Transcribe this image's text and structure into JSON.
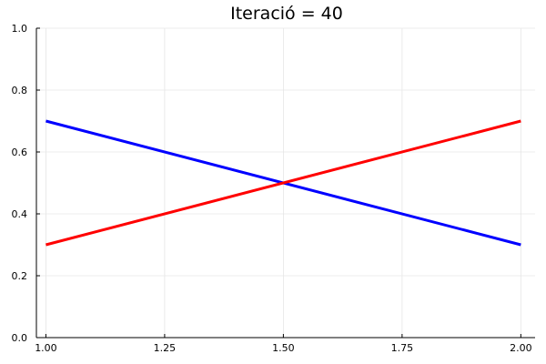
{
  "chart_data": {
    "type": "line",
    "title": "Iteració = 40",
    "xlabel": "",
    "ylabel": "",
    "xlim": [
      0.98,
      2.03
    ],
    "ylim": [
      0,
      1
    ],
    "grid": true,
    "legend": "none",
    "x_ticks": [
      1.0,
      1.25,
      1.5,
      1.75,
      2.0
    ],
    "x_tick_labels": [
      "1.00",
      "1.25",
      "1.50",
      "1.75",
      "2.00"
    ],
    "y_ticks": [
      0.0,
      0.2,
      0.4,
      0.6,
      0.8,
      1.0
    ],
    "y_tick_labels": [
      "0.0",
      "0.2",
      "0.4",
      "0.6",
      "0.8",
      "1.0"
    ],
    "series": [
      {
        "color": "#0000ff",
        "x": [
          1.0,
          2.0
        ],
        "y": [
          0.7,
          0.3
        ]
      },
      {
        "color": "#ff0000",
        "x": [
          1.0,
          2.0
        ],
        "y": [
          0.3,
          0.7
        ]
      }
    ]
  }
}
